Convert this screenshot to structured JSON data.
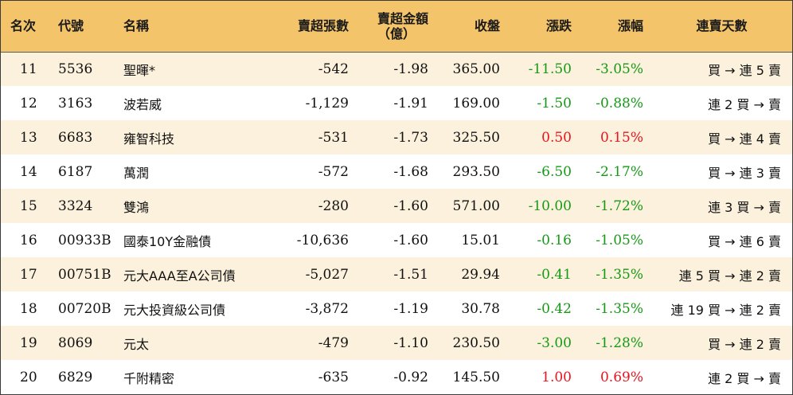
{
  "columns": {
    "rank": "名次",
    "code": "代號",
    "name": "名稱",
    "net_sell_lots": "賣超張數",
    "net_sell_amount": "賣超金額",
    "net_sell_amount_unit": "（億）",
    "close": "收盤",
    "change": "漲跌",
    "change_pct": "漲幅",
    "streak": "連賣天數"
  },
  "colors": {
    "header_bg": "#f4c46a",
    "row_alt_bg": "#fcf1dc",
    "down": "#169a16",
    "up": "#e8141e"
  },
  "rows": [
    {
      "rank": "11",
      "code": "5536",
      "name": "聖暉*",
      "lots": "-542",
      "amount": "-1.98",
      "close": "365.00",
      "change": "-11.50",
      "pct": "-3.05%",
      "dir": "down",
      "streak": "買 → 連 5 賣"
    },
    {
      "rank": "12",
      "code": "3163",
      "name": "波若威",
      "lots": "-1,129",
      "amount": "-1.91",
      "close": "169.00",
      "change": "-1.50",
      "pct": "-0.88%",
      "dir": "down",
      "streak": "連 2 買 → 賣"
    },
    {
      "rank": "13",
      "code": "6683",
      "name": "雍智科技",
      "lots": "-531",
      "amount": "-1.73",
      "close": "325.50",
      "change": "0.50",
      "pct": "0.15%",
      "dir": "up",
      "streak": "買 → 連 4 賣"
    },
    {
      "rank": "14",
      "code": "6187",
      "name": "萬潤",
      "lots": "-572",
      "amount": "-1.68",
      "close": "293.50",
      "change": "-6.50",
      "pct": "-2.17%",
      "dir": "down",
      "streak": "買 → 連 3 賣"
    },
    {
      "rank": "15",
      "code": "3324",
      "name": "雙鴻",
      "lots": "-280",
      "amount": "-1.60",
      "close": "571.00",
      "change": "-10.00",
      "pct": "-1.72%",
      "dir": "down",
      "streak": "連 3 買 → 賣"
    },
    {
      "rank": "16",
      "code": "00933B",
      "name": "國泰10Y金融債",
      "lots": "-10,636",
      "amount": "-1.60",
      "close": "15.01",
      "change": "-0.16",
      "pct": "-1.05%",
      "dir": "down",
      "streak": "買 → 連 6 賣"
    },
    {
      "rank": "17",
      "code": "00751B",
      "name": "元大AAA至A公司債",
      "lots": "-5,027",
      "amount": "-1.51",
      "close": "29.94",
      "change": "-0.41",
      "pct": "-1.35%",
      "dir": "down",
      "streak": "連 5 買 → 連 2 賣"
    },
    {
      "rank": "18",
      "code": "00720B",
      "name": "元大投資級公司債",
      "lots": "-3,872",
      "amount": "-1.19",
      "close": "30.78",
      "change": "-0.42",
      "pct": "-1.35%",
      "dir": "down",
      "streak": "連 19 買 → 連 2 賣"
    },
    {
      "rank": "19",
      "code": "8069",
      "name": "元太",
      "lots": "-479",
      "amount": "-1.10",
      "close": "230.50",
      "change": "-3.00",
      "pct": "-1.28%",
      "dir": "down",
      "streak": "買 → 連 2 賣"
    },
    {
      "rank": "20",
      "code": "6829",
      "name": "千附精密",
      "lots": "-635",
      "amount": "-0.92",
      "close": "145.50",
      "change": "1.00",
      "pct": "0.69%",
      "dir": "up",
      "streak": "連 2 買 → 賣"
    }
  ]
}
